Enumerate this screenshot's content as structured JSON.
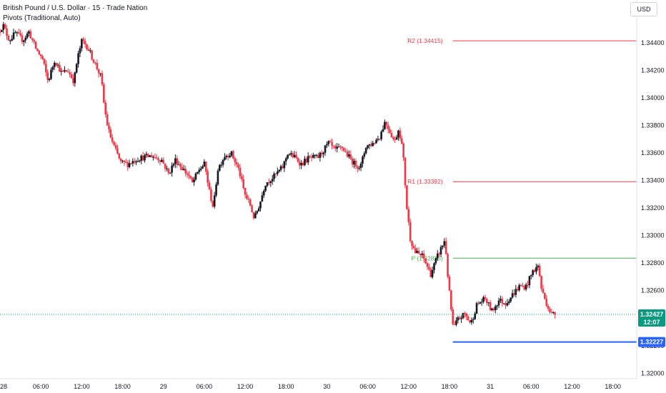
{
  "header": {
    "title": "British Pound / U.S. Dollar · 15 · Trade Nation",
    "indicator": "Pivots (Traditional, Auto)",
    "currency": "USD"
  },
  "colors": {
    "bull": "#131722",
    "bear": "#f23645",
    "resistance": "#f23645",
    "pivot": "#4caf50",
    "current": "#089981",
    "level": "#2962ff"
  },
  "chart_data": {
    "type": "candlestick",
    "symbol": "GBPUSD",
    "timeframe": "15",
    "y_ticks": [
      1.344,
      1.342,
      1.34,
      1.338,
      1.336,
      1.334,
      1.332,
      1.33,
      1.328,
      1.326,
      1.324,
      1.322,
      1.32
    ],
    "y_tick_labels": [
      "1.34400",
      "1.34200",
      "1.34000",
      "1.33800",
      "1.33600",
      "1.33400",
      "1.33200",
      "1.33000",
      "1.32800",
      "1.32600",
      "1.32400",
      "1.32200",
      "1.32000"
    ],
    "ylim": [
      1.3196,
      1.3466
    ],
    "x_labels": [
      "28",
      "06:00",
      "12:00",
      "18:00",
      "29",
      "06:00",
      "12:00",
      "18:00",
      "30",
      "06:00",
      "12:00",
      "18:00",
      "31",
      "06:00",
      "12:00",
      "18:00"
    ],
    "x_label_hours": [
      0,
      6,
      12,
      18,
      24,
      30,
      36,
      42,
      48,
      54,
      60,
      66,
      72,
      78,
      84,
      90
    ],
    "xlim": [
      0,
      93.5
    ],
    "pivots": [
      {
        "label": "R2",
        "display": "R2 (1.34415)",
        "value": 1.34415,
        "kind": "resistance"
      },
      {
        "label": "R1",
        "display": "R1 (1.33392)",
        "value": 1.33392,
        "kind": "resistance"
      },
      {
        "label": "P",
        "display": "P (1.32836)",
        "value": 1.32836,
        "kind": "pivot"
      }
    ],
    "pivot_start_hour": 66.5,
    "current_price": {
      "value": 1.32427,
      "label": "1.32427",
      "countdown": "12:07"
    },
    "level_line": {
      "value": 1.32227,
      "label": "1.32227",
      "start_hour": 66.5
    },
    "price_path": [
      [
        0,
        1.3448
      ],
      [
        0.7,
        1.3453
      ],
      [
        1.6,
        1.3442
      ],
      [
        2.5,
        1.3447
      ],
      [
        3.6,
        1.3442
      ],
      [
        4.5,
        1.3448
      ],
      [
        5.5,
        1.3436
      ],
      [
        6.5,
        1.3428
      ],
      [
        7.3,
        1.3412
      ],
      [
        8.3,
        1.3428
      ],
      [
        9.3,
        1.3418
      ],
      [
        10.2,
        1.342
      ],
      [
        11.1,
        1.3412
      ],
      [
        11.6,
        1.3428
      ],
      [
        12.3,
        1.3442
      ],
      [
        13.1,
        1.3437
      ],
      [
        14.2,
        1.3425
      ],
      [
        15.1,
        1.3415
      ],
      [
        15.6,
        1.3392
      ],
      [
        16.1,
        1.3378
      ],
      [
        16.6,
        1.337
      ],
      [
        17.2,
        1.3362
      ],
      [
        18,
        1.3353
      ],
      [
        19,
        1.3352
      ],
      [
        20.5,
        1.3356
      ],
      [
        22.5,
        1.3358
      ],
      [
        24,
        1.3355
      ],
      [
        25,
        1.3345
      ],
      [
        26,
        1.3355
      ],
      [
        27.2,
        1.3348
      ],
      [
        28,
        1.3343
      ],
      [
        28.5,
        1.3338
      ],
      [
        29.5,
        1.3348
      ],
      [
        30.3,
        1.3352
      ],
      [
        31,
        1.3332
      ],
      [
        31.6,
        1.332
      ],
      [
        32.2,
        1.3348
      ],
      [
        33.2,
        1.3358
      ],
      [
        34.2,
        1.336
      ],
      [
        35.3,
        1.3348
      ],
      [
        36.2,
        1.333
      ],
      [
        37,
        1.3322
      ],
      [
        37.6,
        1.3312
      ],
      [
        38.5,
        1.3325
      ],
      [
        39.2,
        1.3338
      ],
      [
        40.5,
        1.3343
      ],
      [
        41.8,
        1.335
      ],
      [
        42.5,
        1.336
      ],
      [
        43.5,
        1.3357
      ],
      [
        44.5,
        1.3352
      ],
      [
        45.5,
        1.3356
      ],
      [
        47,
        1.3357
      ],
      [
        48.5,
        1.3367
      ],
      [
        49.5,
        1.3362
      ],
      [
        50.5,
        1.3364
      ],
      [
        51.5,
        1.3357
      ],
      [
        52.3,
        1.3352
      ],
      [
        53.2,
        1.335
      ],
      [
        54,
        1.3365
      ],
      [
        55,
        1.3367
      ],
      [
        56,
        1.3372
      ],
      [
        56.8,
        1.3383
      ],
      [
        57.4,
        1.3377
      ],
      [
        58.2,
        1.3368
      ],
      [
        58.8,
        1.3378
      ],
      [
        59.4,
        1.3362
      ],
      [
        60,
        1.332
      ],
      [
        60.5,
        1.3298
      ],
      [
        61.2,
        1.3288
      ],
      [
        62.3,
        1.3285
      ],
      [
        63.5,
        1.3272
      ],
      [
        64.5,
        1.3285
      ],
      [
        65.6,
        1.3297
      ],
      [
        66.1,
        1.3265
      ],
      [
        66.8,
        1.3232
      ],
      [
        67.5,
        1.3239
      ],
      [
        68.5,
        1.3243
      ],
      [
        69.4,
        1.3236
      ],
      [
        70.3,
        1.325
      ],
      [
        71.5,
        1.3254
      ],
      [
        72.5,
        1.3245
      ],
      [
        73.5,
        1.3253
      ],
      [
        74.5,
        1.3251
      ],
      [
        75.5,
        1.3257
      ],
      [
        76.5,
        1.3263
      ],
      [
        77.5,
        1.3263
      ],
      [
        78.5,
        1.3274
      ],
      [
        79.3,
        1.3278
      ],
      [
        79.8,
        1.326
      ],
      [
        80.5,
        1.3251
      ],
      [
        81.2,
        1.3243
      ],
      [
        81.5,
        1.3243
      ]
    ]
  }
}
